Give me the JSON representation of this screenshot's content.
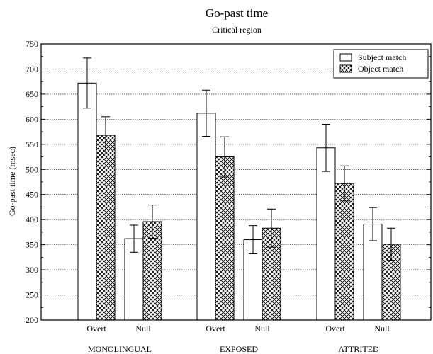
{
  "chart_data": {
    "type": "bar",
    "title": "Go-past time",
    "subtitle": "Critical region",
    "ylabel": "Go-past time (msec)",
    "xlabel": "",
    "ylim": [
      200,
      750
    ],
    "yticks": [
      200,
      250,
      300,
      350,
      400,
      450,
      500,
      550,
      600,
      650,
      700,
      750
    ],
    "grid": true,
    "legend_position": "top-right",
    "groups": [
      {
        "name": "MONOLINGUAL",
        "subcategories": [
          "Overt",
          "Null"
        ]
      },
      {
        "name": "EXPOSED",
        "subcategories": [
          "Overt",
          "Null"
        ]
      },
      {
        "name": "ATTRITED",
        "subcategories": [
          "Overt",
          "Null"
        ]
      }
    ],
    "categories": [
      "Overt",
      "Null",
      "Overt",
      "Null",
      "Overt",
      "Null"
    ],
    "series": [
      {
        "name": "Subject match",
        "pattern": "plain",
        "values": [
          672,
          362,
          612,
          360,
          543,
          391
        ],
        "error": [
          50,
          27,
          46,
          28,
          47,
          33
        ]
      },
      {
        "name": "Object match",
        "pattern": "crosshatch",
        "values": [
          568,
          396,
          525,
          383,
          472,
          351
        ],
        "error": [
          37,
          33,
          40,
          38,
          35,
          32
        ]
      }
    ]
  }
}
